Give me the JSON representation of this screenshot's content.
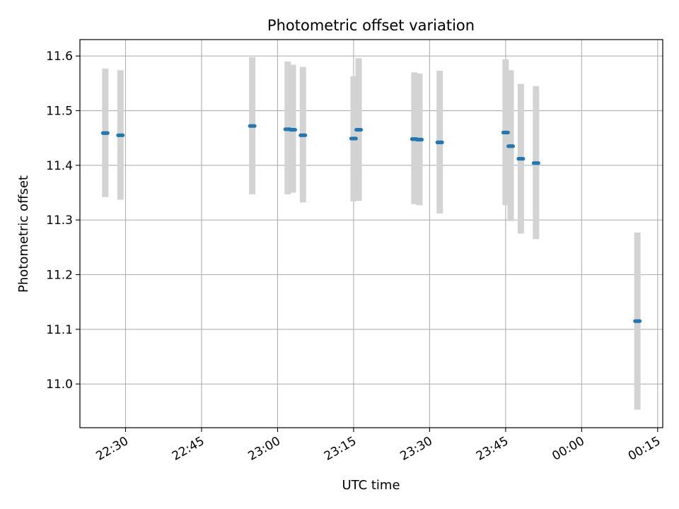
{
  "chart_data": {
    "type": "scatter",
    "title": "Photometric offset variation",
    "xlabel": "UTC time",
    "ylabel": "Photometric offset",
    "x_axis": {
      "kind": "time",
      "range": [
        "22:21",
        "00:16"
      ],
      "tick_values": [
        "22:30",
        "22:45",
        "23:00",
        "23:15",
        "23:30",
        "23:45",
        "00:00",
        "00:15"
      ]
    },
    "y_axis": {
      "range": [
        10.92,
        11.63
      ],
      "tick_values": [
        11.0,
        11.1,
        11.2,
        11.3,
        11.4,
        11.5,
        11.6
      ]
    },
    "grid": true,
    "colors": {
      "points": "#1f77b4",
      "errorbars": "#d3d3d3",
      "grid": "#b0b0b0"
    },
    "points": [
      {
        "t": "22:26",
        "y": 11.459,
        "ylow": 11.342,
        "yhigh": 11.577
      },
      {
        "t": "22:29",
        "y": 11.455,
        "ylow": 11.337,
        "yhigh": 11.574
      },
      {
        "t": "22:55",
        "y": 11.472,
        "ylow": 11.347,
        "yhigh": 11.598
      },
      {
        "t": "23:02",
        "y": 11.466,
        "ylow": 11.347,
        "yhigh": 11.59
      },
      {
        "t": "23:03",
        "y": 11.465,
        "ylow": 11.35,
        "yhigh": 11.584
      },
      {
        "t": "23:05",
        "y": 11.455,
        "ylow": 11.332,
        "yhigh": 11.58
      },
      {
        "t": "23:15",
        "y": 11.449,
        "ylow": 11.334,
        "yhigh": 11.563
      },
      {
        "t": "23:16",
        "y": 11.465,
        "ylow": 11.335,
        "yhigh": 11.596
      },
      {
        "t": "23:27",
        "y": 11.448,
        "ylow": 11.329,
        "yhigh": 11.57
      },
      {
        "t": "23:28",
        "y": 11.447,
        "ylow": 11.327,
        "yhigh": 11.568
      },
      {
        "t": "23:32",
        "y": 11.442,
        "ylow": 11.312,
        "yhigh": 11.573
      },
      {
        "t": "23:45",
        "y": 11.46,
        "ylow": 11.327,
        "yhigh": 11.594
      },
      {
        "t": "23:46",
        "y": 11.435,
        "ylow": 11.298,
        "yhigh": 11.574
      },
      {
        "t": "23:48",
        "y": 11.412,
        "ylow": 11.275,
        "yhigh": 11.549
      },
      {
        "t": "23:51",
        "y": 11.404,
        "ylow": 11.265,
        "yhigh": 11.545
      },
      {
        "t": "00:11",
        "y": 11.115,
        "ylow": 10.953,
        "yhigh": 11.277
      }
    ]
  }
}
